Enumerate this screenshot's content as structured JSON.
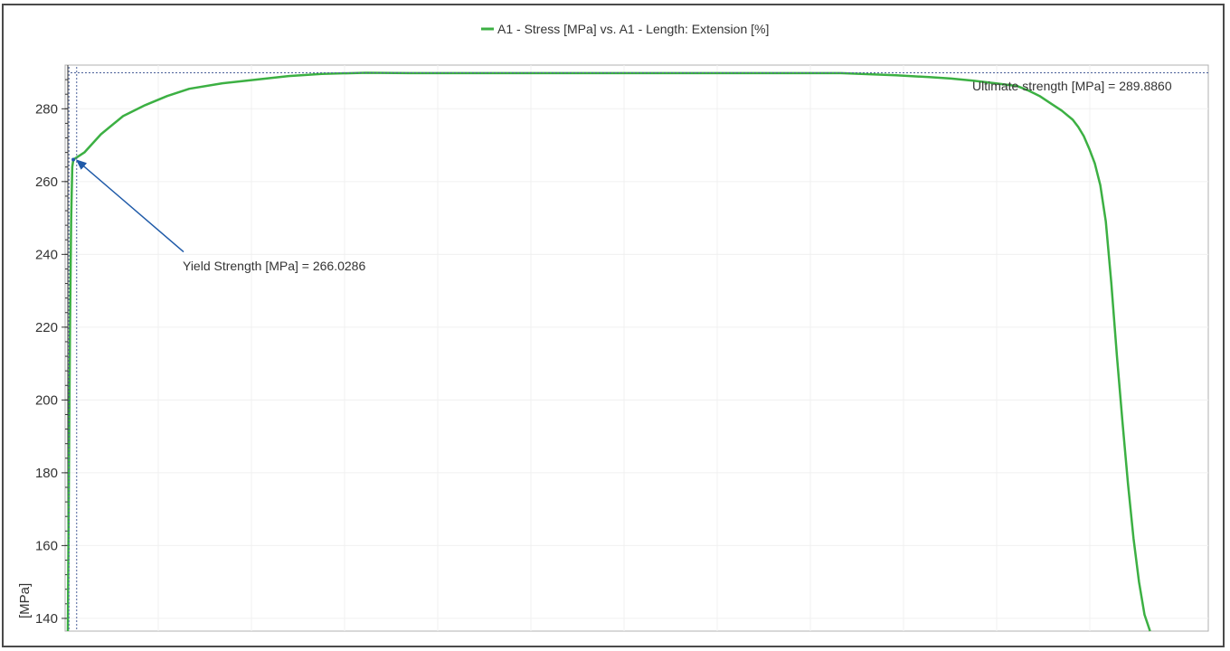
{
  "chart_data": {
    "type": "line",
    "title": "",
    "xlabel": "",
    "ylabel": "[MPa]",
    "ylim": [
      136.5,
      292
    ],
    "xlim": [
      0,
      100
    ],
    "grid": true,
    "legend_position": "top-center",
    "y_ticks": [
      140,
      160,
      180,
      200,
      220,
      240,
      260,
      280
    ],
    "series": [
      {
        "name": "A1 - Stress [MPa] vs. A1 - Length: Extension [%]",
        "color": "#3cb043",
        "x": [
          0,
          0.1,
          0.2,
          0.3,
          0.4,
          0.5,
          1.5,
          3,
          5,
          7,
          9,
          11,
          14,
          17,
          20,
          23,
          27,
          31,
          35,
          40,
          50,
          60,
          65,
          70,
          75,
          78,
          80,
          82,
          84,
          86,
          87,
          88,
          89,
          90,
          91,
          91.5,
          92,
          92.5,
          93,
          93.5,
          94,
          94.5,
          95,
          95.5,
          96,
          96.5,
          97,
          97.5,
          98
        ],
        "y": [
          136.5,
          180,
          220,
          250,
          264,
          266.0286,
          268,
          273,
          278,
          281,
          283.5,
          285.5,
          287,
          288,
          289,
          289.6,
          289.886,
          289.8,
          289.8,
          289.8,
          289.8,
          289.8,
          289.8,
          289.8,
          289.2,
          288.7,
          288.3,
          287.7,
          287,
          286.2,
          285,
          283.5,
          281.5,
          279.5,
          277,
          275,
          272.5,
          269,
          265,
          259,
          249,
          232,
          212,
          194,
          177,
          162,
          150,
          141,
          136.5
        ]
      }
    ]
  },
  "annotations": {
    "yield_label": "Yield Strength [MPa] = 266.0286",
    "yield_value": 266.0286,
    "ultimate_label": "Ultimate strength [MPa] = 289.8860",
    "ultimate_value": 289.886
  }
}
